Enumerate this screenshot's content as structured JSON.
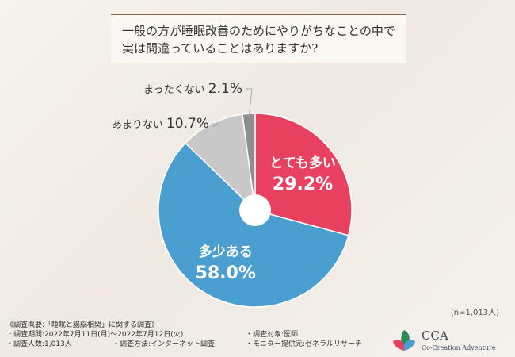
{
  "title": {
    "line1": "一般の方が睡眠改善のためにやりがちなことの中で",
    "line2": "実は間違っていることはありますか?"
  },
  "chart_data": {
    "type": "pie",
    "title": "一般の方が睡眠改善のためにやりがちなことの中で実は間違っていることはありますか?",
    "slices": [
      {
        "label": "とても多い",
        "value": 29.2,
        "display": "29.2%",
        "color": "#e8415f",
        "label_inside": true
      },
      {
        "label": "多少ある",
        "value": 58.0,
        "display": "58.0%",
        "color": "#4a9fd0",
        "label_inside": true
      },
      {
        "label": "あまりない",
        "value": 10.7,
        "display": "10.7%",
        "color": "#c8c8c8",
        "label_inside": false
      },
      {
        "label": "まったくない",
        "value": 2.1,
        "display": "2.1%",
        "color": "#8f8f8f",
        "label_inside": false
      }
    ]
  },
  "sample_size": "(n=1,013人)",
  "survey": {
    "heading": "《調査概要:「睡眠と腸脳相関」に関する調査》",
    "period": "・調査期間:2022年7月11日(月)〜2022年7月12日(火)",
    "target": "・調査対象:医師",
    "count": "・調査人数:1,013人",
    "method": "・調査方法:インターネット調査",
    "provider": "・モニター提供元:ゼネラルリサーチ"
  },
  "logo": {
    "name": "CCA",
    "subtitle": "Co-Creation Adventure"
  }
}
